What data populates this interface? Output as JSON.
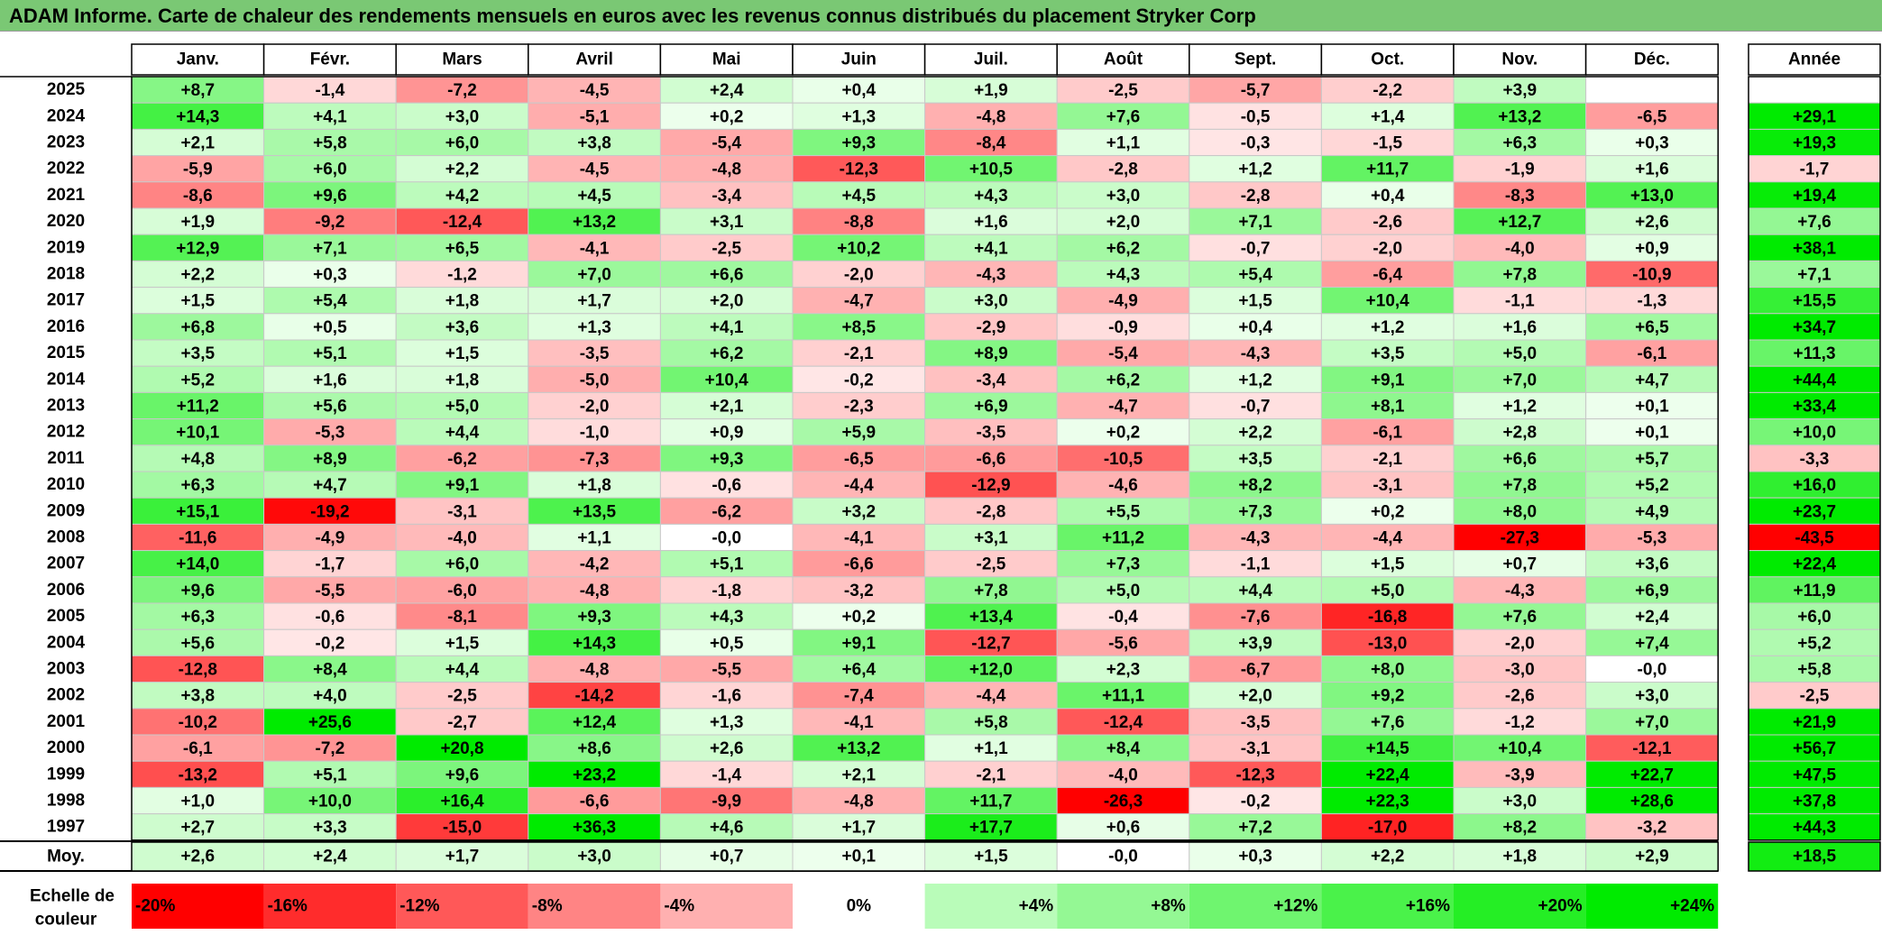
{
  "title": "ADAM Informe. Carte de chaleur des rendements mensuels en euros avec les revenus connus distribués du placement Stryker Corp",
  "colors": {
    "positive_max": "#00e600",
    "negative_max": "#ff0000",
    "neutral": "#ffffff",
    "title_bg": "#7ac874"
  },
  "chart_data": {
    "type": "heatmap",
    "months": [
      "Janv.",
      "Févr.",
      "Mars",
      "Avril",
      "Mai",
      "Juin",
      "Juil.",
      "Août",
      "Sept.",
      "Oct.",
      "Nov.",
      "Déc."
    ],
    "year_header": "Année",
    "average_label": "Moy.",
    "rows": [
      {
        "year": "2025",
        "values": [
          "+8,7",
          "-1,4",
          "-7,2",
          "-4,5",
          "+2,4",
          "+0,4",
          "+1,9",
          "-2,5",
          "-5,7",
          "-2,2",
          "+3,9",
          ""
        ],
        "annual": ""
      },
      {
        "year": "2024",
        "values": [
          "+14,3",
          "+4,1",
          "+3,0",
          "-5,1",
          "+0,2",
          "+1,3",
          "-4,8",
          "+7,6",
          "-0,5",
          "+1,4",
          "+13,2",
          "-6,5"
        ],
        "annual": "+29,1"
      },
      {
        "year": "2023",
        "values": [
          "+2,1",
          "+5,8",
          "+6,0",
          "+3,8",
          "-5,4",
          "+9,3",
          "-8,4",
          "+1,1",
          "-0,3",
          "-1,5",
          "+6,3",
          "+0,3"
        ],
        "annual": "+19,3"
      },
      {
        "year": "2022",
        "values": [
          "-5,9",
          "+6,0",
          "+2,2",
          "-4,5",
          "-4,8",
          "-12,3",
          "+10,5",
          "-2,8",
          "+1,2",
          "+11,7",
          "-1,9",
          "+1,6"
        ],
        "annual": "-1,7"
      },
      {
        "year": "2021",
        "values": [
          "-8,6",
          "+9,6",
          "+4,2",
          "+4,5",
          "-3,4",
          "+4,5",
          "+4,3",
          "+3,0",
          "-2,8",
          "+0,4",
          "-8,3",
          "+13,0"
        ],
        "annual": "+19,4"
      },
      {
        "year": "2020",
        "values": [
          "+1,9",
          "-9,2",
          "-12,4",
          "+13,2",
          "+3,1",
          "-8,8",
          "+1,6",
          "+2,0",
          "+7,1",
          "-2,6",
          "+12,7",
          "+2,6"
        ],
        "annual": "+7,6"
      },
      {
        "year": "2019",
        "values": [
          "+12,9",
          "+7,1",
          "+6,5",
          "-4,1",
          "-2,5",
          "+10,2",
          "+4,1",
          "+6,2",
          "-0,7",
          "-2,0",
          "-4,0",
          "+0,9"
        ],
        "annual": "+38,1"
      },
      {
        "year": "2018",
        "values": [
          "+2,2",
          "+0,3",
          "-1,2",
          "+7,0",
          "+6,6",
          "-2,0",
          "-4,3",
          "+4,3",
          "+5,4",
          "-6,4",
          "+7,8",
          "-10,9"
        ],
        "annual": "+7,1"
      },
      {
        "year": "2017",
        "values": [
          "+1,5",
          "+5,4",
          "+1,8",
          "+1,7",
          "+2,0",
          "-4,7",
          "+3,0",
          "-4,9",
          "+1,5",
          "+10,4",
          "-1,1",
          "-1,3"
        ],
        "annual": "+15,5"
      },
      {
        "year": "2016",
        "values": [
          "+6,8",
          "+0,5",
          "+3,6",
          "+1,3",
          "+4,1",
          "+8,5",
          "-2,9",
          "-0,9",
          "+0,4",
          "+1,2",
          "+1,6",
          "+6,5"
        ],
        "annual": "+34,7"
      },
      {
        "year": "2015",
        "values": [
          "+3,5",
          "+5,1",
          "+1,5",
          "-3,5",
          "+6,2",
          "-2,1",
          "+8,9",
          "-5,4",
          "-4,3",
          "+3,5",
          "+5,0",
          "-6,1"
        ],
        "annual": "+11,3"
      },
      {
        "year": "2014",
        "values": [
          "+5,2",
          "+1,6",
          "+1,8",
          "-5,0",
          "+10,4",
          "-0,2",
          "-3,4",
          "+6,2",
          "+1,2",
          "+9,1",
          "+7,0",
          "+4,7"
        ],
        "annual": "+44,4"
      },
      {
        "year": "2013",
        "values": [
          "+11,2",
          "+5,6",
          "+5,0",
          "-2,0",
          "+2,1",
          "-2,3",
          "+6,9",
          "-4,7",
          "-0,7",
          "+8,1",
          "+1,2",
          "+0,1"
        ],
        "annual": "+33,4"
      },
      {
        "year": "2012",
        "values": [
          "+10,1",
          "-5,3",
          "+4,4",
          "-1,0",
          "+0,9",
          "+5,9",
          "-3,5",
          "+0,2",
          "+2,2",
          "-6,1",
          "+2,8",
          "+0,1"
        ],
        "annual": "+10,0"
      },
      {
        "year": "2011",
        "values": [
          "+4,8",
          "+8,9",
          "-6,2",
          "-7,3",
          "+9,3",
          "-6,5",
          "-6,6",
          "-10,5",
          "+3,5",
          "-2,1",
          "+6,6",
          "+5,7"
        ],
        "annual": "-3,3"
      },
      {
        "year": "2010",
        "values": [
          "+6,3",
          "+4,7",
          "+9,1",
          "+1,8",
          "-0,6",
          "-4,4",
          "-12,9",
          "-4,6",
          "+8,2",
          "-3,1",
          "+7,8",
          "+5,2"
        ],
        "annual": "+16,0"
      },
      {
        "year": "2009",
        "values": [
          "+15,1",
          "-19,2",
          "-3,1",
          "+13,5",
          "-6,2",
          "+3,2",
          "-2,8",
          "+5,5",
          "+7,3",
          "+0,2",
          "+8,0",
          "+4,9"
        ],
        "annual": "+23,7"
      },
      {
        "year": "2008",
        "values": [
          "-11,6",
          "-4,9",
          "-4,0",
          "+1,1",
          "-0,0",
          "-4,1",
          "+3,1",
          "+11,2",
          "-4,3",
          "-4,4",
          "-27,3",
          "-5,3"
        ],
        "annual": "-43,5"
      },
      {
        "year": "2007",
        "values": [
          "+14,0",
          "-1,7",
          "+6,0",
          "-4,2",
          "+5,1",
          "-6,6",
          "-2,5",
          "+7,3",
          "-1,1",
          "+1,5",
          "+0,7",
          "+3,6"
        ],
        "annual": "+22,4"
      },
      {
        "year": "2006",
        "values": [
          "+9,6",
          "-5,5",
          "-6,0",
          "-4,8",
          "-1,8",
          "-3,2",
          "+7,8",
          "+5,0",
          "+4,4",
          "+5,0",
          "-4,3",
          "+6,9"
        ],
        "annual": "+11,9"
      },
      {
        "year": "2005",
        "values": [
          "+6,3",
          "-0,6",
          "-8,1",
          "+9,3",
          "+4,3",
          "+0,2",
          "+13,4",
          "-0,4",
          "-7,6",
          "-16,8",
          "+7,6",
          "+2,4"
        ],
        "annual": "+6,0"
      },
      {
        "year": "2004",
        "values": [
          "+5,6",
          "-0,2",
          "+1,5",
          "+14,3",
          "+0,5",
          "+9,1",
          "-12,7",
          "-5,6",
          "+3,9",
          "-13,0",
          "-2,0",
          "+7,4"
        ],
        "annual": "+5,2"
      },
      {
        "year": "2003",
        "values": [
          "-12,8",
          "+8,4",
          "+4,4",
          "-4,8",
          "-5,5",
          "+6,4",
          "+12,0",
          "+2,3",
          "-6,7",
          "+8,0",
          "-3,0",
          "-0,0"
        ],
        "annual": "+5,8"
      },
      {
        "year": "2002",
        "values": [
          "+3,8",
          "+4,0",
          "-2,5",
          "-14,2",
          "-1,6",
          "-7,4",
          "-4,4",
          "+11,1",
          "+2,0",
          "+9,2",
          "-2,6",
          "+3,0"
        ],
        "annual": "-2,5"
      },
      {
        "year": "2001",
        "values": [
          "-10,2",
          "+25,6",
          "-2,7",
          "+12,4",
          "+1,3",
          "-4,1",
          "+5,8",
          "-12,4",
          "-3,5",
          "+7,6",
          "-1,2",
          "+7,0"
        ],
        "annual": "+21,9"
      },
      {
        "year": "2000",
        "values": [
          "-6,1",
          "-7,2",
          "+20,8",
          "+8,6",
          "+2,6",
          "+13,2",
          "+1,1",
          "+8,4",
          "-3,1",
          "+14,5",
          "+10,4",
          "-12,1"
        ],
        "annual": "+56,7"
      },
      {
        "year": "1999",
        "values": [
          "-13,2",
          "+5,1",
          "+9,6",
          "+23,2",
          "-1,4",
          "+2,1",
          "-2,1",
          "-4,0",
          "-12,3",
          "+22,4",
          "-3,9",
          "+22,7"
        ],
        "annual": "+47,5"
      },
      {
        "year": "1998",
        "values": [
          "+1,0",
          "+10,0",
          "+16,4",
          "-6,6",
          "-9,9",
          "-4,8",
          "+11,7",
          "-26,3",
          "-0,2",
          "+22,3",
          "+3,0",
          "+28,6"
        ],
        "annual": "+37,8"
      },
      {
        "year": "1997",
        "values": [
          "+2,7",
          "+3,3",
          "-15,0",
          "+36,3",
          "+4,6",
          "+1,7",
          "+17,7",
          "+0,6",
          "+7,2",
          "-17,0",
          "+8,2",
          "-3,2"
        ],
        "annual": "+44,3"
      }
    ],
    "averages": [
      "+2,6",
      "+2,4",
      "+1,7",
      "+3,0",
      "+0,7",
      "+0,1",
      "+1,5",
      "-0,0",
      "+0,3",
      "+2,2",
      "+1,8",
      "+2,9"
    ],
    "average_annual": "+18,5",
    "scale": {
      "label_line1": "Echelle de",
      "label_line2": "couleur",
      "stops": [
        "-20%",
        "-16%",
        "-12%",
        "-8%",
        "-4%",
        "0%",
        "+4%",
        "+8%",
        "+12%",
        "+16%",
        "+20%",
        "+24%"
      ],
      "values": [
        -20,
        -16,
        -12,
        -8,
        -4,
        0,
        4,
        8,
        12,
        16,
        20,
        24
      ]
    }
  }
}
